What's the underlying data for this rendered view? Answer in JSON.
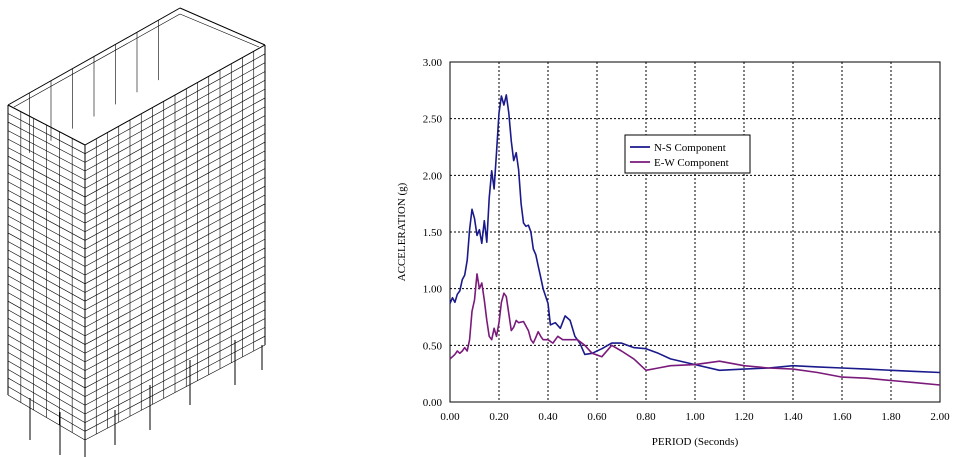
{
  "chart_data": {
    "type": "line",
    "xlabel": "PERIOD (Seconds)",
    "ylabel": "ACCELERATION (g)",
    "xlim": [
      0,
      2.0
    ],
    "ylim": [
      0,
      3.0
    ],
    "x_ticks": [
      "0.00",
      "0.20",
      "0.40",
      "0.60",
      "0.80",
      "1.00",
      "1.20",
      "1.40",
      "1.60",
      "1.80",
      "2.00"
    ],
    "y_ticks": [
      "0.00",
      "0.50",
      "1.00",
      "1.50",
      "2.00",
      "2.50",
      "3.00"
    ],
    "grid": true,
    "legend_position": "upper-middle",
    "series": [
      {
        "name": "N-S Component",
        "color": "#1a1a8c",
        "points": [
          [
            0.0,
            0.87
          ],
          [
            0.01,
            0.92
          ],
          [
            0.02,
            0.88
          ],
          [
            0.03,
            0.95
          ],
          [
            0.04,
            0.98
          ],
          [
            0.05,
            1.08
          ],
          [
            0.06,
            1.12
          ],
          [
            0.07,
            1.25
          ],
          [
            0.08,
            1.52
          ],
          [
            0.09,
            1.7
          ],
          [
            0.1,
            1.62
          ],
          [
            0.11,
            1.47
          ],
          [
            0.12,
            1.52
          ],
          [
            0.13,
            1.4
          ],
          [
            0.14,
            1.6
          ],
          [
            0.15,
            1.41
          ],
          [
            0.16,
            1.8
          ],
          [
            0.17,
            2.04
          ],
          [
            0.18,
            1.88
          ],
          [
            0.19,
            2.2
          ],
          [
            0.2,
            2.55
          ],
          [
            0.21,
            2.7
          ],
          [
            0.22,
            2.62
          ],
          [
            0.23,
            2.71
          ],
          [
            0.24,
            2.55
          ],
          [
            0.25,
            2.3
          ],
          [
            0.26,
            2.13
          ],
          [
            0.27,
            2.2
          ],
          [
            0.28,
            2.05
          ],
          [
            0.29,
            1.75
          ],
          [
            0.3,
            1.58
          ],
          [
            0.31,
            1.55
          ],
          [
            0.32,
            1.56
          ],
          [
            0.33,
            1.5
          ],
          [
            0.34,
            1.35
          ],
          [
            0.35,
            1.3
          ],
          [
            0.36,
            1.2
          ],
          [
            0.37,
            1.1
          ],
          [
            0.38,
            1.0
          ],
          [
            0.4,
            0.87
          ],
          [
            0.41,
            0.68
          ],
          [
            0.43,
            0.7
          ],
          [
            0.45,
            0.65
          ],
          [
            0.47,
            0.76
          ],
          [
            0.49,
            0.72
          ],
          [
            0.51,
            0.58
          ],
          [
            0.53,
            0.52
          ],
          [
            0.55,
            0.42
          ],
          [
            0.58,
            0.43
          ],
          [
            0.62,
            0.47
          ],
          [
            0.66,
            0.52
          ],
          [
            0.7,
            0.52
          ],
          [
            0.75,
            0.48
          ],
          [
            0.8,
            0.47
          ],
          [
            0.85,
            0.43
          ],
          [
            0.9,
            0.38
          ],
          [
            1.0,
            0.33
          ],
          [
            1.1,
            0.28
          ],
          [
            1.2,
            0.29
          ],
          [
            1.3,
            0.3
          ],
          [
            1.4,
            0.32
          ],
          [
            1.5,
            0.31
          ],
          [
            1.6,
            0.3
          ],
          [
            1.7,
            0.29
          ],
          [
            1.8,
            0.28
          ],
          [
            1.9,
            0.27
          ],
          [
            2.0,
            0.26
          ]
        ]
      },
      {
        "name": "E-W Component",
        "color": "#7a1a7a",
        "points": [
          [
            0.0,
            0.38
          ],
          [
            0.01,
            0.4
          ],
          [
            0.02,
            0.42
          ],
          [
            0.03,
            0.45
          ],
          [
            0.04,
            0.43
          ],
          [
            0.05,
            0.45
          ],
          [
            0.06,
            0.48
          ],
          [
            0.07,
            0.45
          ],
          [
            0.08,
            0.55
          ],
          [
            0.09,
            0.8
          ],
          [
            0.1,
            0.9
          ],
          [
            0.11,
            1.13
          ],
          [
            0.12,
            1.0
          ],
          [
            0.13,
            1.05
          ],
          [
            0.14,
            0.9
          ],
          [
            0.15,
            0.72
          ],
          [
            0.16,
            0.58
          ],
          [
            0.17,
            0.55
          ],
          [
            0.18,
            0.65
          ],
          [
            0.19,
            0.58
          ],
          [
            0.2,
            0.7
          ],
          [
            0.21,
            0.88
          ],
          [
            0.22,
            0.96
          ],
          [
            0.23,
            0.93
          ],
          [
            0.24,
            0.78
          ],
          [
            0.25,
            0.63
          ],
          [
            0.26,
            0.66
          ],
          [
            0.27,
            0.72
          ],
          [
            0.28,
            0.7
          ],
          [
            0.3,
            0.71
          ],
          [
            0.32,
            0.63
          ],
          [
            0.33,
            0.55
          ],
          [
            0.34,
            0.52
          ],
          [
            0.35,
            0.57
          ],
          [
            0.36,
            0.62
          ],
          [
            0.37,
            0.58
          ],
          [
            0.38,
            0.55
          ],
          [
            0.4,
            0.55
          ],
          [
            0.42,
            0.52
          ],
          [
            0.44,
            0.58
          ],
          [
            0.46,
            0.55
          ],
          [
            0.48,
            0.55
          ],
          [
            0.52,
            0.55
          ],
          [
            0.55,
            0.5
          ],
          [
            0.58,
            0.43
          ],
          [
            0.62,
            0.4
          ],
          [
            0.66,
            0.5
          ],
          [
            0.7,
            0.45
          ],
          [
            0.75,
            0.38
          ],
          [
            0.8,
            0.28
          ],
          [
            0.85,
            0.3
          ],
          [
            0.9,
            0.32
          ],
          [
            1.0,
            0.33
          ],
          [
            1.1,
            0.36
          ],
          [
            1.2,
            0.32
          ],
          [
            1.3,
            0.3
          ],
          [
            1.4,
            0.29
          ],
          [
            1.5,
            0.26
          ],
          [
            1.6,
            0.22
          ],
          [
            1.7,
            0.21
          ],
          [
            1.8,
            0.19
          ],
          [
            1.9,
            0.17
          ],
          [
            2.0,
            0.15
          ]
        ]
      }
    ]
  }
}
